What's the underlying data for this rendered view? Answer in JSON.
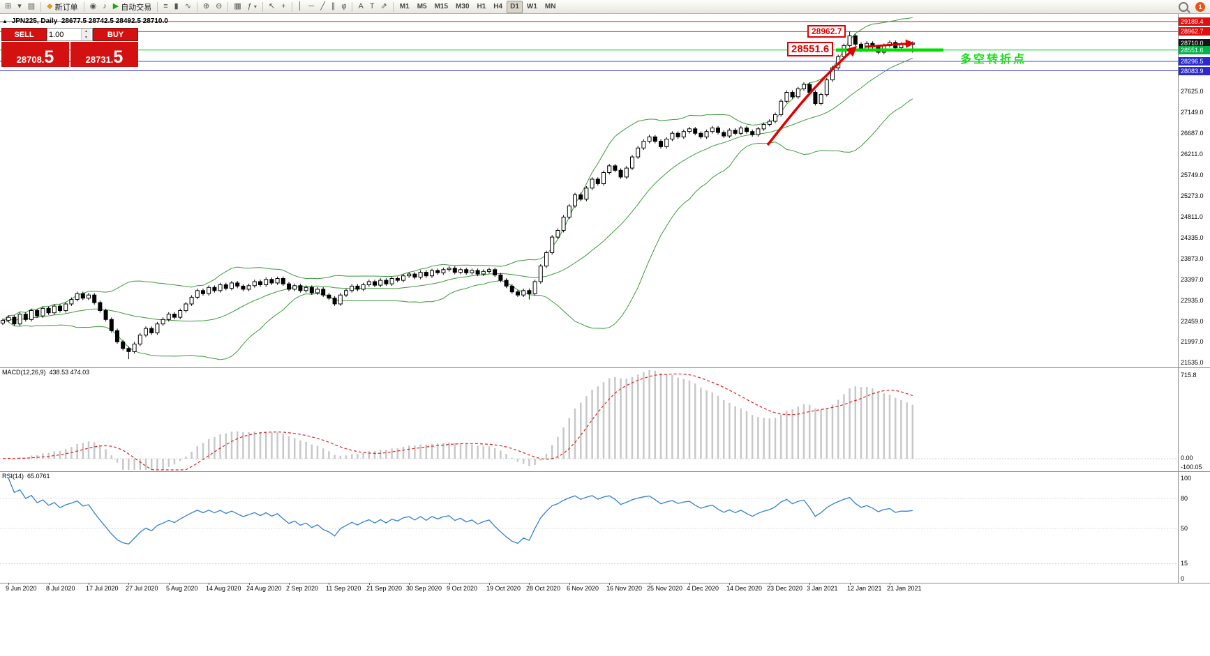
{
  "toolbar": {
    "items": [
      {
        "name": "new-chart-button",
        "glyph": "⊞"
      },
      {
        "name": "chart-dropdown",
        "glyph": "▾"
      },
      {
        "name": "profiles-button",
        "glyph": "▤"
      },
      {
        "sep": true
      },
      {
        "name": "new-order-button",
        "glyph": "◆",
        "glyph_color": "#d7a021",
        "label": "新订单"
      },
      {
        "sep": true
      },
      {
        "name": "alerts-button",
        "glyph": "◉"
      },
      {
        "name": "sounds-button",
        "glyph": "♪"
      },
      {
        "name": "autotrading-button",
        "glyph": "▶",
        "glyph_color": "#18a818",
        "label": "自动交易"
      },
      {
        "sep": true
      },
      {
        "name": "bar-chart-button",
        "glyph": "≡"
      },
      {
        "name": "candlestick-chart-button",
        "glyph": "▮"
      },
      {
        "name": "line-chart-button",
        "glyph": "∿"
      },
      {
        "sep": true
      },
      {
        "name": "zoom-in-button",
        "glyph": "⊕"
      },
      {
        "name": "zoom-out-button",
        "glyph": "⊖"
      },
      {
        "sep": true
      },
      {
        "name": "tile-windows-button",
        "glyph": "▦"
      },
      {
        "name": "indicators-button",
        "glyph": "ƒ",
        "caret": true
      },
      {
        "sep": true
      },
      {
        "name": "cursor-button",
        "glyph": "↖"
      },
      {
        "name": "crosshair-button",
        "glyph": "+"
      },
      {
        "sep": true
      },
      {
        "name": "vertical-line-button",
        "glyph": "│"
      },
      {
        "name": "horizontal-line-button",
        "glyph": "─"
      },
      {
        "name": "trendline-button",
        "glyph": "╱"
      },
      {
        "name": "channel-button",
        "glyph": "∥"
      },
      {
        "name": "fibonacci-button",
        "glyph": "φ"
      },
      {
        "sep": true
      },
      {
        "name": "text-button",
        "glyph": "A"
      },
      {
        "name": "label-button",
        "glyph": "T"
      },
      {
        "name": "arrows-button",
        "glyph": "⇗"
      },
      {
        "sep": true
      }
    ],
    "timeframes": [
      "M1",
      "M5",
      "M15",
      "M30",
      "H1",
      "H4",
      "D1",
      "W1",
      "MN"
    ],
    "active_timeframe": "D1",
    "badge": "1"
  },
  "header": {
    "expand_icon": "▲",
    "symbol_text": "JPN225, Daily",
    "ohlc_text": "28677.5 28742.5 28492.5 28710.0"
  },
  "trade_panel": {
    "color": "#d41111",
    "sell_label": "SELL",
    "buy_label": "BUY",
    "volume": "1.00",
    "spin_up": "▲",
    "spin_down": "▼",
    "sell_price_head": "28708.",
    "sell_price_pip": "5",
    "buy_price_head": "28731.",
    "buy_price_pip": "5"
  },
  "annotations": {
    "upper_price": "28962.7",
    "lower_price": "28551.6",
    "note": "多空转折点",
    "note_color": "#1fdd1f",
    "box_color": "#e00000",
    "arrow_color": "#e00000",
    "highlight_color": "#00e000"
  },
  "indicators": {
    "macd_label": "MACD(12,26,9)",
    "macd_values": "438.53 474.03",
    "macd_axis_top": "715.8",
    "macd_axis_zero": "0.00",
    "macd_axis_low": "-100.05",
    "rsi_label": "RSI(14)",
    "rsi_value": "65.0761",
    "rsi_axis": [
      "100",
      "80",
      "50",
      "15",
      "0"
    ],
    "rsi_levels": [
      80,
      50,
      15
    ],
    "bollinger_color": "#3a9a3a",
    "macd_bar_color": "#c8c8c8",
    "macd_signal_color": "#e02020",
    "rsi_line_color": "#2f7fd6"
  },
  "chart_data": {
    "type": "candlestick",
    "symbol": "JPN225",
    "timeframe": "Daily",
    "candle_up_color": "#ffffff",
    "candle_down_color": "#000000",
    "candle_outline": "#000000",
    "y_axis": {
      "price_top": 29360,
      "price_bottom": 21425,
      "labels": [
        "27625.0",
        "27149.0",
        "26687.0",
        "26211.0",
        "25749.0",
        "25273.0",
        "24811.0",
        "24335.0",
        "23873.0",
        "23397.0",
        "22935.0",
        "22459.0",
        "21997.0",
        "21535.0"
      ]
    },
    "price_tags": [
      {
        "text": "29189.4",
        "price": 29189.4,
        "bg": "#e01010",
        "line_color": "#ee2222",
        "line_width": 1
      },
      {
        "text": "28962.7",
        "price": 28962.7,
        "bg": "#e01010",
        "line_color": "#ee2222",
        "line_width": 1
      },
      {
        "text": "28710.0",
        "price": 28710.0,
        "bg": "#151515",
        "line_color": null,
        "line_width": 0
      },
      {
        "text": "28551.6",
        "price": 28551.6,
        "bg": "#00b44a",
        "line_color": "#00cc22",
        "line_width": 1
      },
      {
        "text": "28296.5",
        "price": 28296.5,
        "bg": "#2a2ad0",
        "line_color": "#4444dd",
        "line_width": 1
      },
      {
        "text": "28083.9",
        "price": 28083.9,
        "bg": "#2a2ad0",
        "line_color": "#4444dd",
        "line_width": 1
      }
    ],
    "x_labels": [
      "9 Jun 2020",
      "8 Jul 2020",
      "17 Jul 2020",
      "27 Jul 2020",
      "5 Aug 2020",
      "14 Aug 2020",
      "24 Aug 2020",
      "2 Sep 2020",
      "11 Sep 2020",
      "21 Sep 2020",
      "30 Sep 2020",
      "9 Oct 2020",
      "19 Oct 2020",
      "28 Oct 2020",
      "6 Nov 2020",
      "16 Nov 2020",
      "25 Nov 2020",
      "4 Dec 2020",
      "14 Dec 2020",
      "23 Dec 2020",
      "3 Jan 2021",
      "12 Jan 2021",
      "21 Jan 2021"
    ],
    "first_label_candle": 1,
    "candles_per_label": 7,
    "bollinger": {
      "period": 20,
      "deviation": 2
    },
    "candles": [
      [
        22420,
        22525,
        22375,
        22480
      ],
      [
        22480,
        22595,
        22435,
        22550
      ],
      [
        22550,
        22595,
        22355,
        22400
      ],
      [
        22400,
        22665,
        22355,
        22620
      ],
      [
        22620,
        22665,
        22455,
        22500
      ],
      [
        22500,
        22745,
        22455,
        22700
      ],
      [
        22700,
        22745,
        22535,
        22580
      ],
      [
        22580,
        22795,
        22535,
        22750
      ],
      [
        22750,
        22795,
        22605,
        22650
      ],
      [
        22650,
        22845,
        22605,
        22800
      ],
      [
        22800,
        22845,
        22655,
        22700
      ],
      [
        22700,
        22895,
        22655,
        22850
      ],
      [
        22850,
        22995,
        22805,
        22950
      ],
      [
        22950,
        23125,
        22905,
        23080
      ],
      [
        23080,
        23125,
        22935,
        22980
      ],
      [
        22980,
        23095,
        22935,
        23050
      ],
      [
        23050,
        23095,
        22835,
        22880
      ],
      [
        22880,
        22925,
        22655,
        22700
      ],
      [
        22700,
        22745,
        22455,
        22500
      ],
      [
        22500,
        22545,
        22205,
        22250
      ],
      [
        22250,
        22295,
        21955,
        22000
      ],
      [
        22000,
        22045,
        21805,
        21850
      ],
      [
        21850,
        21895,
        21610,
        21780
      ],
      [
        21780,
        21995,
        21735,
        21950
      ],
      [
        21950,
        22195,
        21905,
        22150
      ],
      [
        22150,
        22345,
        22105,
        22300
      ],
      [
        22300,
        22345,
        22155,
        22200
      ],
      [
        22200,
        22445,
        22155,
        22400
      ],
      [
        22400,
        22545,
        22355,
        22500
      ],
      [
        22500,
        22665,
        22455,
        22620
      ],
      [
        22620,
        22665,
        22505,
        22550
      ],
      [
        22550,
        22745,
        22505,
        22700
      ],
      [
        22700,
        22895,
        22655,
        22850
      ],
      [
        22850,
        23045,
        22805,
        23000
      ],
      [
        23000,
        23195,
        22955,
        23150
      ],
      [
        23150,
        23195,
        23035,
        23080
      ],
      [
        23080,
        23265,
        23035,
        23220
      ],
      [
        23220,
        23265,
        23105,
        23150
      ],
      [
        23150,
        23325,
        23105,
        23280
      ],
      [
        23280,
        23325,
        23155,
        23200
      ],
      [
        23200,
        23365,
        23155,
        23320
      ],
      [
        23320,
        23365,
        23205,
        23250
      ],
      [
        23250,
        23295,
        23135,
        23180
      ],
      [
        23180,
        23305,
        23135,
        23260
      ],
      [
        23260,
        23395,
        23215,
        23350
      ],
      [
        23350,
        23395,
        23235,
        23280
      ],
      [
        23280,
        23445,
        23235,
        23400
      ],
      [
        23400,
        23445,
        23275,
        23320
      ],
      [
        23320,
        23465,
        23275,
        23420
      ],
      [
        23420,
        23465,
        23255,
        23300
      ],
      [
        23300,
        23345,
        23135,
        23180
      ],
      [
        23180,
        23305,
        23135,
        23260
      ],
      [
        23260,
        23305,
        23105,
        23150
      ],
      [
        23150,
        23265,
        23105,
        23220
      ],
      [
        23220,
        23265,
        23055,
        23100
      ],
      [
        23100,
        23225,
        23055,
        23180
      ],
      [
        23180,
        23225,
        23005,
        23050
      ],
      [
        23050,
        23095,
        22935,
        22980
      ],
      [
        22980,
        23025,
        22805,
        22850
      ],
      [
        22850,
        23095,
        22805,
        23050
      ],
      [
        23050,
        23195,
        23005,
        23150
      ],
      [
        23150,
        23295,
        23105,
        23250
      ],
      [
        23250,
        23295,
        23135,
        23180
      ],
      [
        23180,
        23325,
        23135,
        23280
      ],
      [
        23280,
        23395,
        23235,
        23350
      ],
      [
        23350,
        23395,
        23225,
        23270
      ],
      [
        23270,
        23425,
        23225,
        23380
      ],
      [
        23380,
        23425,
        23255,
        23300
      ],
      [
        23300,
        23465,
        23255,
        23420
      ],
      [
        23420,
        23465,
        23335,
        23380
      ],
      [
        23380,
        23525,
        23335,
        23480
      ],
      [
        23480,
        23565,
        23435,
        23520
      ],
      [
        23520,
        23565,
        23405,
        23450
      ],
      [
        23450,
        23605,
        23405,
        23560
      ],
      [
        23560,
        23605,
        23435,
        23480
      ],
      [
        23480,
        23645,
        23435,
        23600
      ],
      [
        23600,
        23645,
        23505,
        23550
      ],
      [
        23550,
        23665,
        23505,
        23620
      ],
      [
        23620,
        23695,
        23575,
        23650
      ],
      [
        23650,
        23695,
        23515,
        23560
      ],
      [
        23560,
        23665,
        23515,
        23620
      ],
      [
        23620,
        23665,
        23505,
        23550
      ],
      [
        23550,
        23645,
        23505,
        23600
      ],
      [
        23600,
        23645,
        23475,
        23520
      ],
      [
        23520,
        23625,
        23475,
        23580
      ],
      [
        23580,
        23665,
        23535,
        23620
      ],
      [
        23620,
        23665,
        23455,
        23500
      ],
      [
        23500,
        23545,
        23335,
        23380
      ],
      [
        23380,
        23425,
        23205,
        23250
      ],
      [
        23250,
        23295,
        23075,
        23120
      ],
      [
        23120,
        23165,
        23005,
        23050
      ],
      [
        23050,
        23195,
        23005,
        23150
      ],
      [
        23150,
        23195,
        22950,
        23080
      ],
      [
        23080,
        23395,
        23035,
        23350
      ],
      [
        23350,
        23745,
        23305,
        23700
      ],
      [
        23700,
        24045,
        23655,
        24000
      ],
      [
        24000,
        24395,
        23955,
        24350
      ],
      [
        24350,
        24545,
        24305,
        24500
      ],
      [
        24500,
        24845,
        24455,
        24800
      ],
      [
        24800,
        25095,
        24755,
        25050
      ],
      [
        25050,
        25345,
        25005,
        25300
      ],
      [
        25300,
        25345,
        25155,
        25200
      ],
      [
        25200,
        25495,
        25155,
        25450
      ],
      [
        25450,
        25695,
        25405,
        25650
      ],
      [
        25650,
        25695,
        25505,
        25550
      ],
      [
        25550,
        25845,
        25505,
        25800
      ],
      [
        25800,
        25995,
        25755,
        25950
      ],
      [
        25950,
        25995,
        25805,
        25850
      ],
      [
        25850,
        25895,
        25655,
        25700
      ],
      [
        25700,
        25945,
        25655,
        25900
      ],
      [
        25900,
        26195,
        25855,
        26150
      ],
      [
        26150,
        26395,
        26105,
        26350
      ],
      [
        26350,
        26545,
        26305,
        26500
      ],
      [
        26500,
        26645,
        26455,
        26600
      ],
      [
        26600,
        26645,
        26455,
        26500
      ],
      [
        26500,
        26545,
        26335,
        26380
      ],
      [
        26380,
        26595,
        26335,
        26550
      ],
      [
        26550,
        26725,
        26505,
        26680
      ],
      [
        26680,
        26725,
        26555,
        26600
      ],
      [
        26600,
        26765,
        26555,
        26720
      ],
      [
        26720,
        26825,
        26675,
        26780
      ],
      [
        26780,
        26825,
        26635,
        26680
      ],
      [
        26680,
        26725,
        26555,
        26600
      ],
      [
        26600,
        26765,
        26555,
        26720
      ],
      [
        26720,
        26845,
        26675,
        26800
      ],
      [
        26800,
        26845,
        26655,
        26700
      ],
      [
        26700,
        26745,
        26575,
        26620
      ],
      [
        26620,
        26795,
        26575,
        26750
      ],
      [
        26750,
        26795,
        26635,
        26680
      ],
      [
        26680,
        26845,
        26635,
        26800
      ],
      [
        26800,
        26845,
        26675,
        26720
      ],
      [
        26720,
        26765,
        26605,
        26650
      ],
      [
        26650,
        26825,
        26605,
        26780
      ],
      [
        26780,
        26925,
        26735,
        26880
      ],
      [
        26880,
        26995,
        26835,
        26950
      ],
      [
        26950,
        27145,
        26905,
        27100
      ],
      [
        27100,
        27445,
        27055,
        27400
      ],
      [
        27400,
        27645,
        27355,
        27600
      ],
      [
        27600,
        27645,
        27455,
        27500
      ],
      [
        27500,
        27725,
        27455,
        27680
      ],
      [
        27680,
        27825,
        27635,
        27780
      ],
      [
        27780,
        27825,
        27555,
        27600
      ],
      [
        27600,
        27645,
        27305,
        27350
      ],
      [
        27350,
        27595,
        27305,
        27550
      ],
      [
        27550,
        27925,
        27505,
        27880
      ],
      [
        27880,
        28195,
        27835,
        28150
      ],
      [
        28150,
        28445,
        28105,
        28400
      ],
      [
        28400,
        28695,
        28355,
        28650
      ],
      [
        28650,
        28962,
        28605,
        28870
      ],
      [
        28870,
        28915,
        28635,
        28680
      ],
      [
        28680,
        28725,
        28505,
        28550
      ],
      [
        28550,
        28745,
        28505,
        28700
      ],
      [
        28700,
        28745,
        28575,
        28620
      ],
      [
        28620,
        28665,
        28455,
        28500
      ],
      [
        28500,
        28695,
        28455,
        28650
      ],
      [
        28650,
        28765,
        28605,
        28720
      ],
      [
        28720,
        28765,
        28555,
        28600
      ],
      [
        28600,
        28725,
        28555,
        28680
      ],
      [
        28680,
        28725,
        28632,
        28677
      ],
      [
        28677,
        28742,
        28492,
        28710
      ]
    ]
  }
}
